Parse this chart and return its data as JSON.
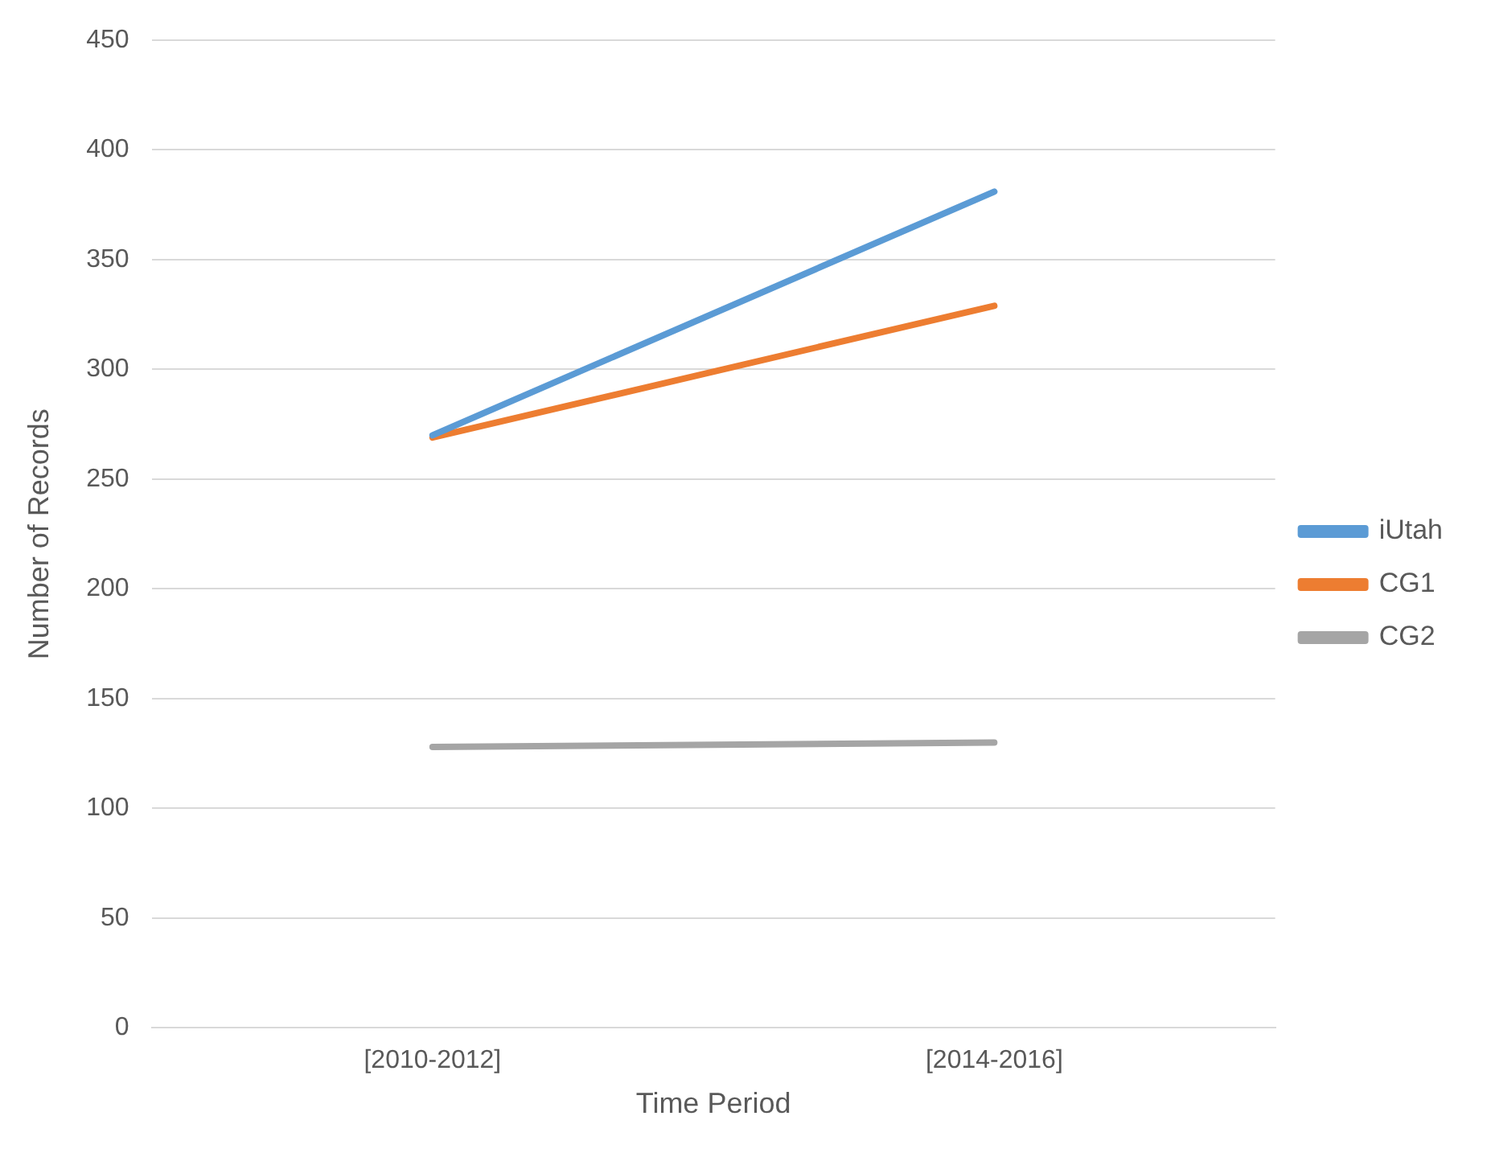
{
  "chart_data": {
    "type": "line",
    "xlabel": "Time Period",
    "ylabel": "Number of Records",
    "categories": [
      "[2010-2012]",
      "[2014-2016]"
    ],
    "series": [
      {
        "name": "iUtah",
        "color": "#5b9bd5",
        "values": [
          270,
          381
        ]
      },
      {
        "name": "CG1",
        "color": "#ed7d31",
        "values": [
          269,
          329
        ]
      },
      {
        "name": "CG2",
        "color": "#a5a5a5",
        "values": [
          128,
          130
        ]
      }
    ],
    "ylim": [
      0,
      450
    ],
    "yticks": [
      0,
      50,
      100,
      150,
      200,
      250,
      300,
      350,
      400,
      450
    ],
    "grid": "y",
    "legend": "right",
    "marker": "none",
    "line_style": "solid"
  }
}
